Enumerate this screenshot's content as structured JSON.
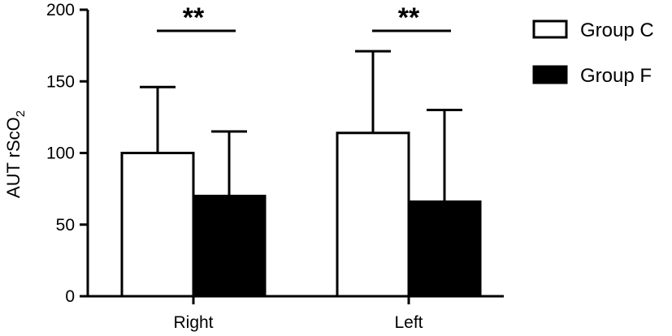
{
  "chart_data": {
    "type": "bar",
    "categories": [
      "Right",
      "Left"
    ],
    "series": [
      {
        "name": "Group C",
        "values": [
          100,
          114
        ],
        "error": [
          46,
          57
        ],
        "fill": "#ffffff"
      },
      {
        "name": "Group F",
        "values": [
          70,
          66
        ],
        "error": [
          45,
          64
        ],
        "fill": "#000000"
      }
    ],
    "ylabel_main": "AUT rScO",
    "ylabel_sub": "2",
    "ylim": [
      0,
      200
    ],
    "yticks": [
      "0",
      "50",
      "100",
      "150",
      "200"
    ],
    "significance": [
      "**",
      "**"
    ],
    "legend_position": "top-right",
    "grid": false
  }
}
